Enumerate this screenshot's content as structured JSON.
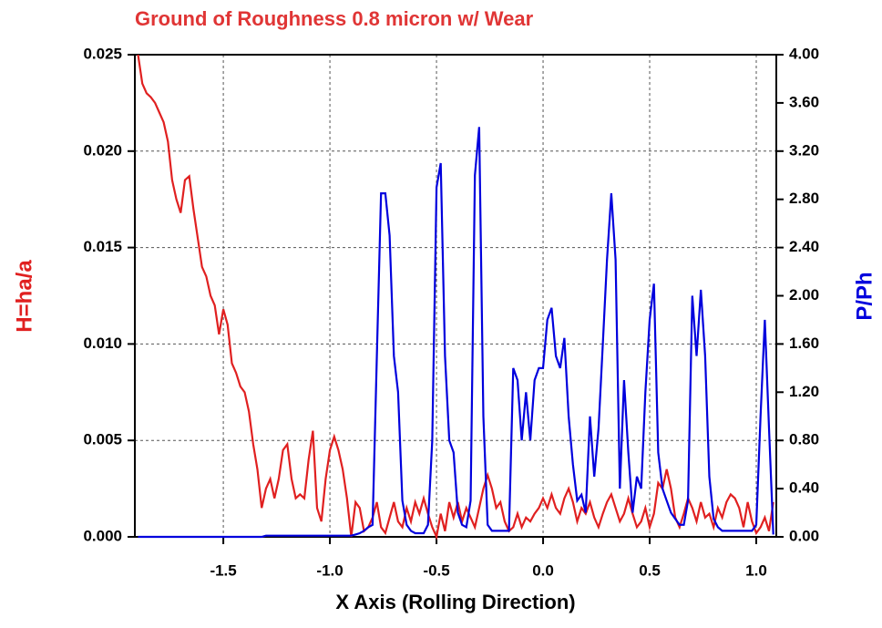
{
  "chart_data": {
    "type": "line",
    "title": "Ground of Roughness 0.8 micron w/ Wear",
    "xlabel": "X Axis (Rolling Direction)",
    "ylabel": "H=ha/a",
    "y2label": "P/Ph",
    "title_color": "#e03535",
    "grid": true,
    "xlim": [
      -1.915,
      1.094
    ],
    "ylim": [
      0,
      0.025
    ],
    "y2lim": [
      0,
      4
    ],
    "xticks": [
      -1.5,
      {
        "value": -1,
        "label": "-1.0"
      },
      -0.5,
      {
        "value": 0,
        "label": "0.0"
      },
      0.5,
      {
        "value": 1,
        "label": "1.0"
      }
    ],
    "yticks": [
      {
        "value": 0,
        "label": "0.000"
      },
      {
        "value": 0.005,
        "label": "0.005"
      },
      {
        "value": 0.01,
        "label": "0.010"
      },
      {
        "value": 0.015,
        "label": "0.015"
      },
      {
        "value": 0.02,
        "label": "0.020"
      },
      {
        "value": 0.025,
        "label": "0.025"
      }
    ],
    "y2ticks": [
      {
        "value": 0,
        "label": "0.00"
      },
      {
        "value": 0.4,
        "label": "0.40"
      },
      {
        "value": 0.8,
        "label": "0.80"
      },
      {
        "value": 1.2,
        "label": "1.20"
      },
      {
        "value": 1.6,
        "label": "1.60"
      },
      {
        "value": 2,
        "label": "2.00"
      },
      {
        "value": 2.4,
        "label": "2.40"
      },
      {
        "value": 2.8,
        "label": "2.80"
      },
      {
        "value": 3.2,
        "label": "3.20"
      },
      {
        "value": 3.6,
        "label": "3.60"
      },
      {
        "value": 4,
        "label": "4.00"
      }
    ],
    "x": [
      -1.9,
      -1.88,
      -1.86,
      -1.84,
      -1.82,
      -1.8,
      -1.78,
      -1.76,
      -1.74,
      -1.72,
      -1.7,
      -1.68,
      -1.66,
      -1.64,
      -1.62,
      -1.6,
      -1.58,
      -1.56,
      -1.54,
      -1.52,
      -1.5,
      -1.48,
      -1.46,
      -1.44,
      -1.42,
      -1.4,
      -1.38,
      -1.36,
      -1.34,
      -1.32,
      -1.3,
      -1.28,
      -1.26,
      -1.24,
      -1.22,
      -1.2,
      -1.18,
      -1.16,
      -1.14,
      -1.12,
      -1.1,
      -1.08,
      -1.06,
      -1.04,
      -1.02,
      -1.0,
      -0.98,
      -0.96,
      -0.94,
      -0.92,
      -0.9,
      -0.88,
      -0.86,
      -0.84,
      -0.82,
      -0.8,
      -0.78,
      -0.76,
      -0.74,
      -0.72,
      -0.7,
      -0.68,
      -0.66,
      -0.64,
      -0.62,
      -0.6,
      -0.58,
      -0.56,
      -0.54,
      -0.52,
      -0.5,
      -0.48,
      -0.46,
      -0.44,
      -0.42,
      -0.4,
      -0.38,
      -0.36,
      -0.34,
      -0.32,
      -0.3,
      -0.28,
      -0.26,
      -0.24,
      -0.22,
      -0.2,
      -0.18,
      -0.16,
      -0.14,
      -0.12,
      -0.1,
      -0.08,
      -0.06,
      -0.04,
      -0.02,
      0.0,
      0.02,
      0.04,
      0.06,
      0.08,
      0.1,
      0.12,
      0.14,
      0.16,
      0.18,
      0.2,
      0.22,
      0.24,
      0.26,
      0.28,
      0.3,
      0.32,
      0.34,
      0.36,
      0.38,
      0.4,
      0.42,
      0.44,
      0.46,
      0.48,
      0.5,
      0.52,
      0.54,
      0.56,
      0.58,
      0.6,
      0.62,
      0.64,
      0.66,
      0.68,
      0.7,
      0.72,
      0.74,
      0.76,
      0.78,
      0.8,
      0.82,
      0.84,
      0.86,
      0.88,
      0.9,
      0.92,
      0.94,
      0.96,
      0.98,
      1.0,
      1.02,
      1.04,
      1.06,
      1.08
    ],
    "series": [
      {
        "name": "H=ha/a",
        "color": "#e02020",
        "values": [
          0.025,
          0.0235,
          0.023,
          0.0228,
          0.0225,
          0.022,
          0.0215,
          0.0205,
          0.0185,
          0.0175,
          0.0168,
          0.0185,
          0.0187,
          0.017,
          0.0155,
          0.014,
          0.0135,
          0.0125,
          0.012,
          0.0105,
          0.0118,
          0.011,
          0.009,
          0.0085,
          0.0078,
          0.0075,
          0.0065,
          0.0048,
          0.0035,
          0.0015,
          0.0025,
          0.003,
          0.002,
          0.003,
          0.0045,
          0.0048,
          0.003,
          0.002,
          0.0022,
          0.002,
          0.004,
          0.0055,
          0.0015,
          0.0008,
          0.003,
          0.0045,
          0.0052,
          0.0045,
          0.0035,
          0.002,
          0.0,
          0.0018,
          0.0015,
          0.0003,
          0.0005,
          0.001,
          0.0018,
          0.0005,
          0.0002,
          0.001,
          0.0018,
          0.0008,
          0.0005,
          0.0015,
          0.0008,
          0.0018,
          0.0012,
          0.002,
          0.0012,
          0.0005,
          0.0,
          0.0012,
          0.0003,
          0.0018,
          0.001,
          0.0018,
          0.0008,
          0.0015,
          0.001,
          0.0005,
          0.0015,
          0.0025,
          0.0032,
          0.0025,
          0.0015,
          0.0018,
          0.0008,
          0.0003,
          0.0005,
          0.0012,
          0.0005,
          0.001,
          0.0008,
          0.0012,
          0.0015,
          0.002,
          0.0015,
          0.0022,
          0.0015,
          0.0012,
          0.002,
          0.0025,
          0.0018,
          0.0008,
          0.0015,
          0.0012,
          0.0018,
          0.001,
          0.0005,
          0.0012,
          0.0018,
          0.0022,
          0.0015,
          0.0008,
          0.0012,
          0.002,
          0.0012,
          0.0005,
          0.0008,
          0.0015,
          0.0005,
          0.0012,
          0.0028,
          0.0025,
          0.0035,
          0.0025,
          0.001,
          0.0005,
          0.0012,
          0.002,
          0.0015,
          0.0008,
          0.0018,
          0.001,
          0.0012,
          0.0005,
          0.0015,
          0.001,
          0.0018,
          0.0022,
          0.002,
          0.0015,
          0.0005,
          0.0018,
          0.0008,
          0.0002,
          0.0005,
          0.001,
          0.0003,
          0.0018
        ]
      },
      {
        "name": "P/Ph",
        "color": "#0000dd",
        "axis": "y2",
        "values": [
          0,
          0,
          0,
          0,
          0,
          0,
          0,
          0,
          0,
          0,
          0,
          0,
          0,
          0,
          0,
          0,
          0,
          0,
          0,
          0,
          0,
          0,
          0,
          0,
          0,
          0,
          0,
          0,
          0,
          0,
          0.01,
          0.01,
          0.01,
          0.01,
          0.01,
          0.01,
          0.01,
          0.01,
          0.01,
          0.01,
          0.01,
          0.01,
          0.01,
          0.01,
          0.01,
          0.01,
          0.01,
          0.01,
          0.01,
          0.01,
          0.01,
          0.02,
          0.03,
          0.05,
          0.08,
          0.1,
          1.5,
          2.85,
          2.85,
          2.5,
          1.5,
          1.2,
          0.3,
          0.1,
          0.05,
          0.03,
          0.03,
          0.03,
          0.1,
          0.8,
          2.9,
          3.1,
          1.5,
          0.8,
          0.7,
          0.2,
          0.1,
          0.08,
          0.3,
          3.0,
          3.4,
          1.0,
          0.1,
          0.05,
          0.05,
          0.05,
          0.05,
          0.05,
          1.4,
          1.3,
          0.8,
          1.2,
          0.8,
          1.3,
          1.4,
          1.4,
          1.8,
          1.9,
          1.5,
          1.4,
          1.65,
          1.0,
          0.6,
          0.3,
          0.35,
          0.2,
          1.0,
          0.5,
          0.9,
          1.6,
          2.3,
          2.85,
          2.3,
          0.4,
          1.3,
          0.7,
          0.2,
          0.5,
          0.4,
          1.2,
          1.8,
          2.1,
          0.7,
          0.4,
          0.3,
          0.2,
          0.15,
          0.1,
          0.1,
          0.3,
          2.0,
          1.5,
          2.05,
          1.5,
          0.5,
          0.15,
          0.08,
          0.05,
          0.05,
          0.05,
          0.05,
          0.05,
          0.05,
          0.05,
          0.05,
          0.1,
          1.0,
          1.8,
          0.9,
          0.02
        ]
      }
    ]
  }
}
